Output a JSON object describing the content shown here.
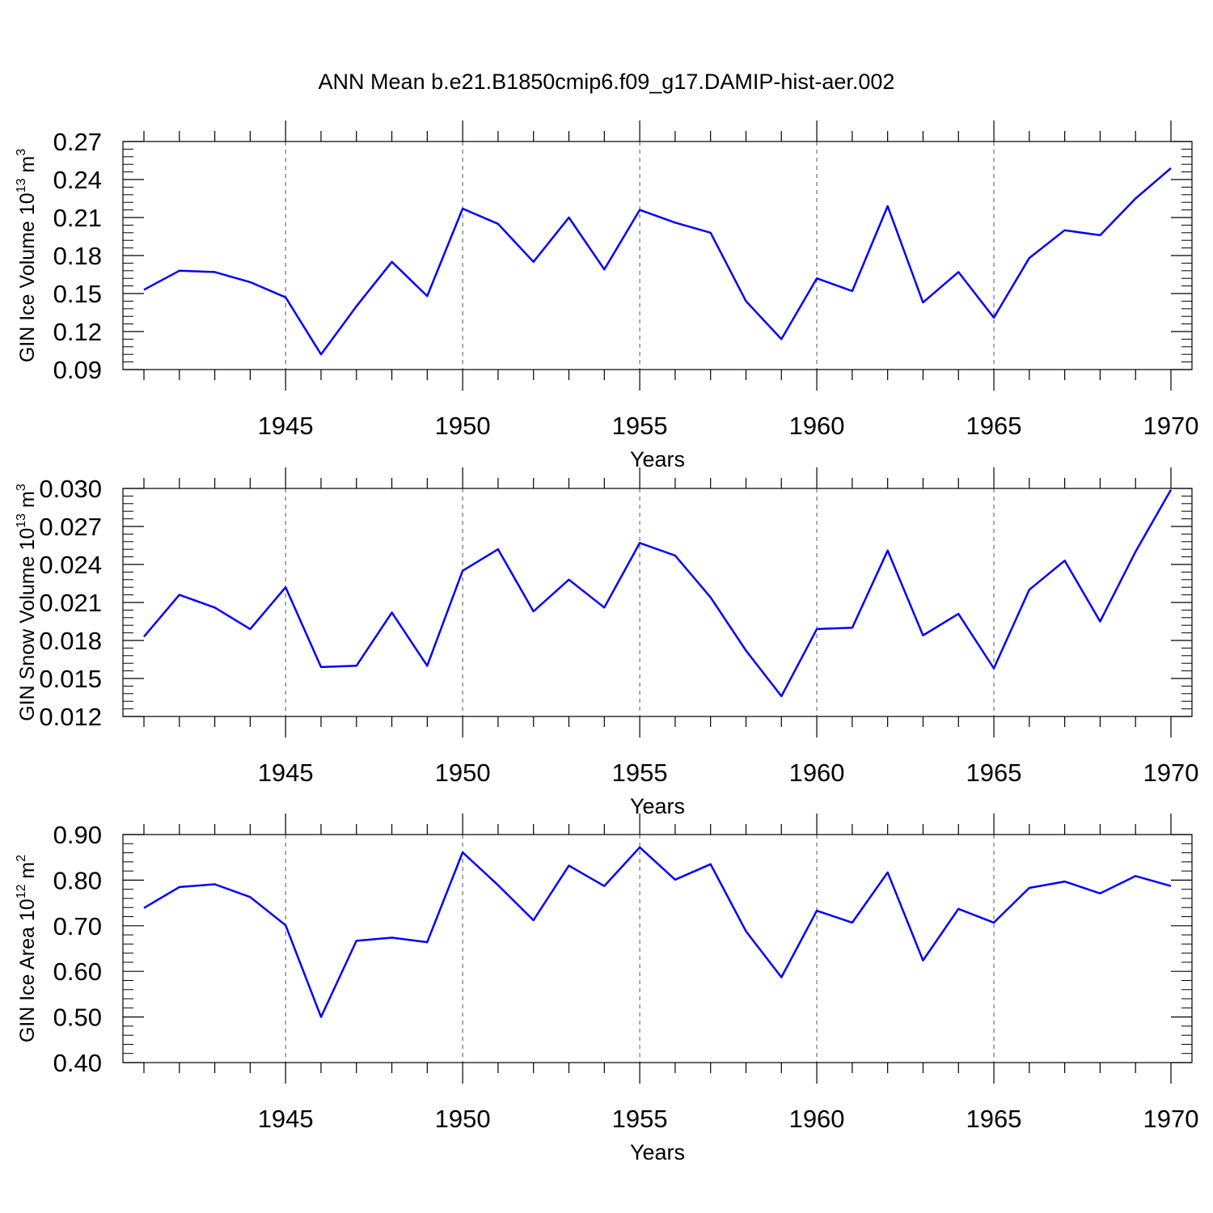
{
  "title": "ANN Mean b.e21.B1850cmip6.f09_g17.DAMIP-hist-aer.002",
  "colors": {
    "line": "#0000ff",
    "axis": "#000000",
    "grid": "#555555",
    "background": "#ffffff"
  },
  "chart_data": [
    {
      "type": "line",
      "ylabel": {
        "main": "GIN Ice Volume 10",
        "exponent": "13",
        "unit": " m",
        "unit_exponent": "3"
      },
      "xlabel": "Years",
      "xlim": [
        1941,
        1970
      ],
      "ylim": [
        0.09,
        0.27
      ],
      "yticks": [
        "0.09",
        "0.12",
        "0.15",
        "0.18",
        "0.21",
        "0.24",
        "0.27"
      ],
      "xticks": [
        "1945",
        "1950",
        "1955",
        "1960",
        "1965",
        "1970"
      ],
      "x": [
        1941,
        1942,
        1943,
        1944,
        1945,
        1946,
        1947,
        1948,
        1949,
        1950,
        1951,
        1952,
        1953,
        1954,
        1955,
        1956,
        1957,
        1958,
        1959,
        1960,
        1961,
        1962,
        1963,
        1964,
        1965,
        1966,
        1967,
        1968,
        1969,
        1970
      ],
      "series": [
        {
          "values": [
            0.153,
            0.168,
            0.167,
            0.159,
            0.147,
            0.102,
            0.14,
            0.175,
            0.148,
            0.217,
            0.205,
            0.175,
            0.21,
            0.169,
            0.216,
            0.206,
            0.198,
            0.144,
            0.114,
            0.162,
            0.152,
            0.219,
            0.143,
            0.167,
            0.131,
            0.178,
            0.2,
            0.196,
            0.225,
            0.249
          ]
        }
      ],
      "grid": "vertical dashed at labeled x ticks"
    },
    {
      "type": "line",
      "ylabel": {
        "main": "GIN Snow Volume 10",
        "exponent": "13",
        "unit": " m",
        "unit_exponent": "3"
      },
      "xlabel": "Years",
      "xlim": [
        1941,
        1970
      ],
      "ylim": [
        0.012,
        0.03
      ],
      "yticks": [
        "0.012",
        "0.015",
        "0.018",
        "0.021",
        "0.024",
        "0.027",
        "0.030"
      ],
      "xticks": [
        "1945",
        "1950",
        "1955",
        "1960",
        "1965",
        "1970"
      ],
      "x": [
        1941,
        1942,
        1943,
        1944,
        1945,
        1946,
        1947,
        1948,
        1949,
        1950,
        1951,
        1952,
        1953,
        1954,
        1955,
        1956,
        1957,
        1958,
        1959,
        1960,
        1961,
        1962,
        1963,
        1964,
        1965,
        1966,
        1967,
        1968,
        1969,
        1970
      ],
      "series": [
        {
          "values": [
            0.0183,
            0.0216,
            0.0206,
            0.0189,
            0.0222,
            0.0159,
            0.016,
            0.0202,
            0.016,
            0.0235,
            0.0252,
            0.0203,
            0.0228,
            0.0206,
            0.0257,
            0.0247,
            0.0214,
            0.0172,
            0.0136,
            0.0189,
            0.019,
            0.0251,
            0.0184,
            0.0201,
            0.0158,
            0.022,
            0.0243,
            0.0195,
            0.025,
            0.0299
          ]
        }
      ],
      "grid": "vertical dashed at labeled x ticks"
    },
    {
      "type": "line",
      "ylabel": {
        "main": "GIN Ice Area 10",
        "exponent": "12",
        "unit": " m",
        "unit_exponent": "2"
      },
      "xlabel": "Years",
      "xlim": [
        1941,
        1970
      ],
      "ylim": [
        0.4,
        0.9
      ],
      "yticks": [
        "0.40",
        "0.50",
        "0.60",
        "0.70",
        "0.80",
        "0.90"
      ],
      "xticks": [
        "1945",
        "1950",
        "1955",
        "1960",
        "1965",
        "1970"
      ],
      "x": [
        1941,
        1942,
        1943,
        1944,
        1945,
        1946,
        1947,
        1948,
        1949,
        1950,
        1951,
        1952,
        1953,
        1954,
        1955,
        1956,
        1957,
        1958,
        1959,
        1960,
        1961,
        1962,
        1963,
        1964,
        1965,
        1966,
        1967,
        1968,
        1969,
        1970
      ],
      "series": [
        {
          "values": [
            0.739,
            0.785,
            0.791,
            0.763,
            0.701,
            0.5,
            0.667,
            0.674,
            0.664,
            0.861,
            0.789,
            0.712,
            0.832,
            0.787,
            0.872,
            0.801,
            0.835,
            0.688,
            0.587,
            0.733,
            0.707,
            0.817,
            0.624,
            0.737,
            0.707,
            0.783,
            0.797,
            0.771,
            0.809,
            0.787
          ]
        }
      ],
      "grid": "vertical dashed at labeled x ticks"
    }
  ]
}
